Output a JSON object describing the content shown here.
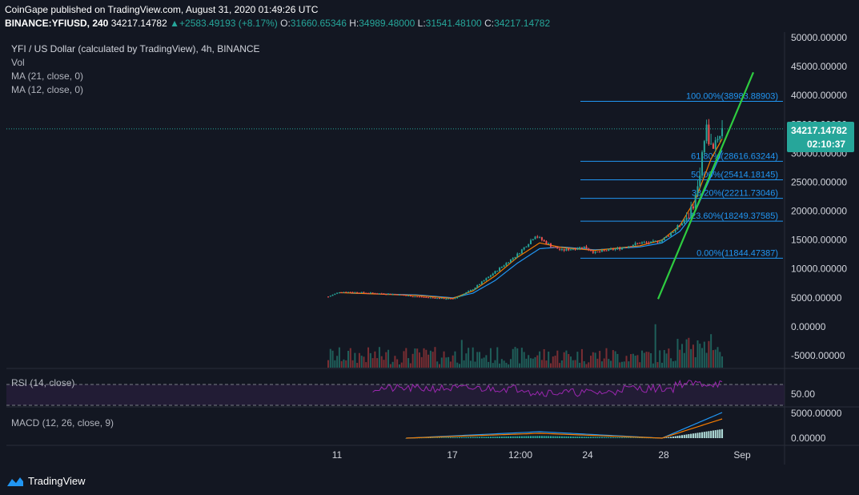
{
  "header": {
    "published": "CoinGape published on TradingView.com, August 31, 2020 01:49:26 UTC",
    "symbol_label": "BINANCE:YFIUSD, 240",
    "last": "34217.14782",
    "change": "+2583.49193 (+8.17%)",
    "open_label": "O:",
    "open": "31660.65346",
    "high_label": "H:",
    "high": "34989.48000",
    "low_label": "L:",
    "low": "31541.48100",
    "close_label": "C:",
    "close": "34217.14782"
  },
  "legend": {
    "title": "YFI / US Dollar (calculated by TradingView), 4h, BINANCE",
    "vol": "Vol",
    "ma21": "MA (21, close, 0)",
    "ma12": "MA (12, close, 0)"
  },
  "current_price_label": "34217.14782",
  "countdown": "02:10:37",
  "rsi_label": "RSI (14, close)",
  "macd_label": "MACD (12, 26, close, 9)",
  "brand": "TradingView",
  "colors": {
    "background": "#131722",
    "up": "#26a69a",
    "down": "#ef5350",
    "fib": "#2196f3",
    "trendline": "#2ecc40",
    "ma_fast": "#f57c00",
    "ma_slow": "#2196f3",
    "rsi": "#9c27b0",
    "price_tag": "#26a69a"
  },
  "chart_data": {
    "type": "candlestick",
    "price_axis": {
      "labels": [
        "50000.00000",
        "45000.00000",
        "40000.00000",
        "35000.00000",
        "30000.00000",
        "25000.00000",
        "20000.00000",
        "15000.00000",
        "10000.00000",
        "5000.00000",
        "0.00000",
        "-5000.00000"
      ],
      "min": -5000,
      "max": 50000
    },
    "x_axis": {
      "labels": [
        "11",
        "17",
        "12:00",
        "24",
        "28",
        "Sep"
      ]
    },
    "fib_levels": [
      {
        "label": "100.00%(38983.88903)",
        "value": 38983.88903
      },
      {
        "label": "61.80%(28616.63244)",
        "value": 28616.63244
      },
      {
        "label": "50.00%(25414.18145)",
        "value": 25414.18145
      },
      {
        "label": "38.20%(22211.73046)",
        "value": 22211.73046
      },
      {
        "label": "23.60%(18249.37585)",
        "value": 18249.37585
      },
      {
        "label": "0.00%(11844.47387)",
        "value": 11844.47387
      }
    ],
    "rsi_axis": {
      "label": "50.00"
    },
    "macd_axis": {
      "labels": [
        "5000.00000",
        "0.00000"
      ]
    },
    "price_series": {
      "name": "YFIUSD",
      "anchors": [
        [
          0,
          5200
        ],
        [
          5,
          6000
        ],
        [
          10,
          6000
        ],
        [
          20,
          5800
        ],
        [
          30,
          5600
        ],
        [
          40,
          5200
        ],
        [
          50,
          4900
        ],
        [
          56,
          4800
        ],
        [
          60,
          5500
        ],
        [
          65,
          6500
        ],
        [
          70,
          8000
        ],
        [
          75,
          9500
        ],
        [
          80,
          11000
        ],
        [
          85,
          12500
        ],
        [
          90,
          14500
        ],
        [
          93,
          15800
        ],
        [
          96,
          15000
        ],
        [
          100,
          14000
        ],
        [
          105,
          13200
        ],
        [
          110,
          13500
        ],
        [
          115,
          13800
        ],
        [
          118,
          13200
        ],
        [
          120,
          12800
        ],
        [
          125,
          13200
        ],
        [
          130,
          13500
        ],
        [
          135,
          14000
        ],
        [
          140,
          14500
        ],
        [
          145,
          14500
        ],
        [
          150,
          15000
        ],
        [
          155,
          16500
        ],
        [
          160,
          18500
        ],
        [
          163,
          20000
        ],
        [
          166,
          24000
        ],
        [
          168,
          30000
        ],
        [
          170,
          34000
        ],
        [
          172,
          31000
        ],
        [
          175,
          33000
        ],
        [
          177,
          34217
        ]
      ],
      "note_x": "candle index 0..177"
    },
    "ma21_anchors": [
      [
        10,
        5800
      ],
      [
        40,
        5500
      ],
      [
        56,
        5000
      ],
      [
        65,
        5800
      ],
      [
        75,
        8000
      ],
      [
        85,
        11000
      ],
      [
        95,
        13500
      ],
      [
        105,
        13800
      ],
      [
        120,
        13300
      ],
      [
        140,
        13800
      ],
      [
        150,
        14500
      ],
      [
        158,
        16500
      ],
      [
        165,
        20000
      ],
      [
        172,
        26000
      ],
      [
        177,
        30500
      ]
    ],
    "ma12_anchors": [
      [
        5,
        5900
      ],
      [
        40,
        5400
      ],
      [
        56,
        4900
      ],
      [
        65,
        6200
      ],
      [
        75,
        8800
      ],
      [
        85,
        12000
      ],
      [
        95,
        14500
      ],
      [
        105,
        13700
      ],
      [
        120,
        13200
      ],
      [
        140,
        14000
      ],
      [
        150,
        15000
      ],
      [
        158,
        17500
      ],
      [
        165,
        22000
      ],
      [
        172,
        29000
      ],
      [
        177,
        32500
      ]
    ],
    "trendline": {
      "from": [
        4800,
        155
      ],
      "to": [
        44000,
        177
      ]
    }
  }
}
